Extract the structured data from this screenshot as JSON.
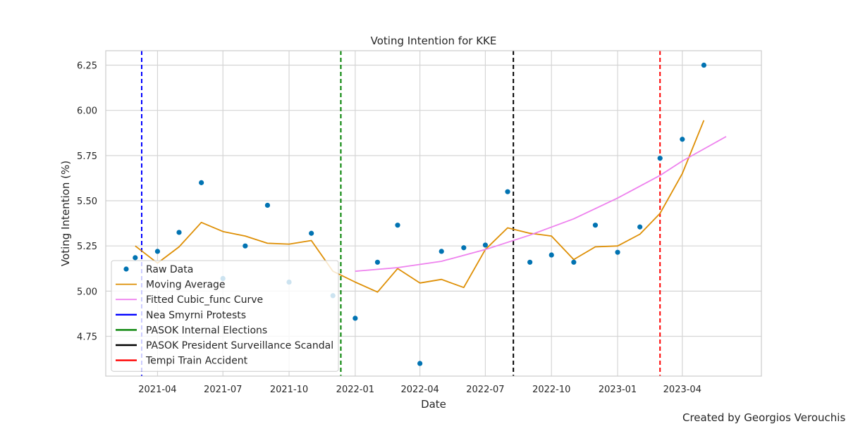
{
  "chart_data": {
    "type": "line",
    "title": "Voting Intention for KKE",
    "xlabel": "Date",
    "ylabel": "Voting Intention (%)",
    "xlim": [
      "2021-01-19",
      "2023-07-20"
    ],
    "ylim": [
      4.53,
      6.33
    ],
    "x_ticks": [
      "2021-04-01",
      "2021-07-01",
      "2021-10-01",
      "2022-01-01",
      "2022-04-01",
      "2022-07-01",
      "2022-10-01",
      "2023-01-01",
      "2023-04-01"
    ],
    "x_tick_labels": [
      "2021-04",
      "2021-07",
      "2021-10",
      "2022-01",
      "2022-04",
      "2022-07",
      "2022-10",
      "2023-01",
      "2023-04"
    ],
    "y_ticks": [
      4.75,
      5.0,
      5.25,
      5.5,
      5.75,
      6.0,
      6.25
    ],
    "y_tick_labels": [
      "4.75",
      "5.00",
      "5.25",
      "5.50",
      "5.75",
      "6.00",
      "6.25"
    ],
    "grid": true,
    "legend_position": "lower-left",
    "series": [
      {
        "name": "Raw Data",
        "kind": "scatter",
        "color": "#0173b2",
        "points": [
          {
            "x": "2021-03-01",
            "y": 5.185
          },
          {
            "x": "2021-04-01",
            "y": 5.22
          },
          {
            "x": "2021-05-01",
            "y": 5.325
          },
          {
            "x": "2021-06-01",
            "y": 5.6
          },
          {
            "x": "2021-07-01",
            "y": 5.07
          },
          {
            "x": "2021-08-01",
            "y": 5.25
          },
          {
            "x": "2021-09-01",
            "y": 5.475
          },
          {
            "x": "2021-10-01",
            "y": 5.05
          },
          {
            "x": "2021-11-01",
            "y": 5.32
          },
          {
            "x": "2021-12-01",
            "y": 4.975
          },
          {
            "x": "2022-01-01",
            "y": 4.85
          },
          {
            "x": "2022-02-01",
            "y": 5.16
          },
          {
            "x": "2022-03-01",
            "y": 5.365
          },
          {
            "x": "2022-04-01",
            "y": 4.6
          },
          {
            "x": "2022-05-01",
            "y": 5.22
          },
          {
            "x": "2022-06-01",
            "y": 5.24
          },
          {
            "x": "2022-07-01",
            "y": 5.255
          },
          {
            "x": "2022-08-01",
            "y": 5.55
          },
          {
            "x": "2022-09-01",
            "y": 5.16
          },
          {
            "x": "2022-10-01",
            "y": 5.2
          },
          {
            "x": "2022-11-01",
            "y": 5.16
          },
          {
            "x": "2022-12-01",
            "y": 5.365
          },
          {
            "x": "2023-01-01",
            "y": 5.215
          },
          {
            "x": "2023-02-01",
            "y": 5.355
          },
          {
            "x": "2023-03-01",
            "y": 5.735
          },
          {
            "x": "2023-04-01",
            "y": 5.84
          },
          {
            "x": "2023-05-01",
            "y": 6.25
          }
        ]
      },
      {
        "name": "Moving Average",
        "kind": "line",
        "color": "#de8f05",
        "points": [
          {
            "x": "2021-03-01",
            "y": 5.25
          },
          {
            "x": "2021-04-01",
            "y": 5.155
          },
          {
            "x": "2021-05-01",
            "y": 5.245
          },
          {
            "x": "2021-06-01",
            "y": 5.38
          },
          {
            "x": "2021-07-01",
            "y": 5.33
          },
          {
            "x": "2021-08-01",
            "y": 5.305
          },
          {
            "x": "2021-09-01",
            "y": 5.265
          },
          {
            "x": "2021-10-01",
            "y": 5.26
          },
          {
            "x": "2021-11-01",
            "y": 5.28
          },
          {
            "x": "2021-12-01",
            "y": 5.11
          },
          {
            "x": "2022-01-01",
            "y": 5.05
          },
          {
            "x": "2022-02-01",
            "y": 4.995
          },
          {
            "x": "2022-03-01",
            "y": 5.125
          },
          {
            "x": "2022-04-01",
            "y": 5.045
          },
          {
            "x": "2022-05-01",
            "y": 5.065
          },
          {
            "x": "2022-06-01",
            "y": 5.02
          },
          {
            "x": "2022-07-01",
            "y": 5.23
          },
          {
            "x": "2022-08-01",
            "y": 5.35
          },
          {
            "x": "2022-09-01",
            "y": 5.32
          },
          {
            "x": "2022-10-01",
            "y": 5.305
          },
          {
            "x": "2022-11-01",
            "y": 5.175
          },
          {
            "x": "2022-12-01",
            "y": 5.245
          },
          {
            "x": "2023-01-01",
            "y": 5.25
          },
          {
            "x": "2023-02-01",
            "y": 5.315
          },
          {
            "x": "2023-03-01",
            "y": 5.43
          },
          {
            "x": "2023-04-01",
            "y": 5.65
          },
          {
            "x": "2023-05-01",
            "y": 5.945
          }
        ]
      },
      {
        "name": "Fitted Cubic_func Curve",
        "kind": "line",
        "color": "#ee82ee",
        "points": [
          {
            "x": "2022-01-01",
            "y": 5.11
          },
          {
            "x": "2022-03-01",
            "y": 5.13
          },
          {
            "x": "2022-05-01",
            "y": 5.165
          },
          {
            "x": "2022-07-01",
            "y": 5.23
          },
          {
            "x": "2022-09-01",
            "y": 5.31
          },
          {
            "x": "2022-11-01",
            "y": 5.4
          },
          {
            "x": "2023-01-01",
            "y": 5.515
          },
          {
            "x": "2023-03-01",
            "y": 5.64
          },
          {
            "x": "2023-04-01",
            "y": 5.72
          },
          {
            "x": "2023-06-01",
            "y": 5.855
          }
        ]
      }
    ],
    "events": [
      {
        "name": "Nea Smyrni Protests",
        "x": "2021-03-10",
        "color": "#0000ff"
      },
      {
        "name": "PASOK Internal Elections",
        "x": "2021-12-12",
        "color": "#008000"
      },
      {
        "name": "PASOK President Surveillance Scandal",
        "x": "2022-08-09",
        "color": "#000000"
      },
      {
        "name": "Tempi Train Accident",
        "x": "2023-03-01",
        "color": "#ff0000"
      }
    ]
  },
  "footer": {
    "credit": "Created by Georgios Verouchis"
  }
}
